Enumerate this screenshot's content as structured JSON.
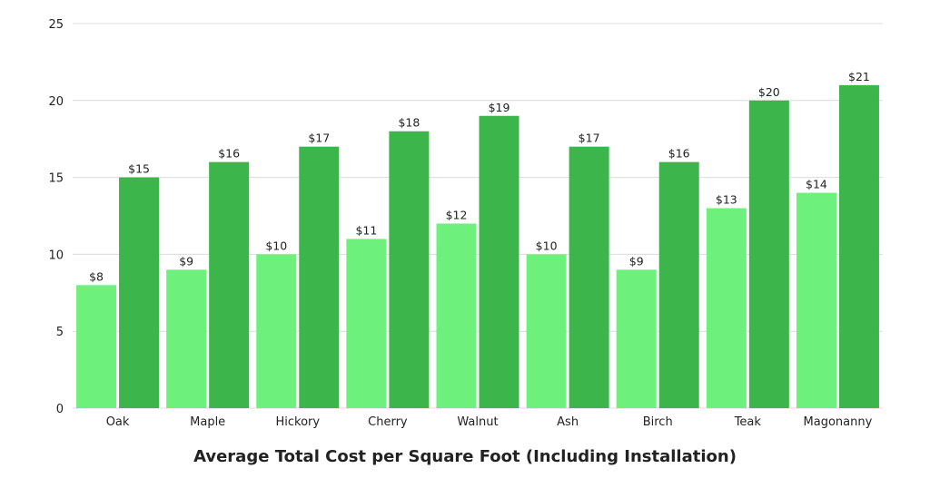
{
  "chart_data": {
    "type": "bar",
    "title": "",
    "xlabel": "Average Total Cost per Square Foot (Including Installation)",
    "ylabel": "",
    "categories": [
      "Oak",
      "Maple",
      "Hickory",
      "Cherry",
      "Walnut",
      "Ash",
      "Birch",
      "Teak",
      "Magonanny"
    ],
    "series": [
      {
        "values": [
          8,
          9,
          10,
          11,
          12,
          10,
          9,
          13,
          14
        ],
        "labels": [
          "$8",
          "$9",
          "$10",
          "$11",
          "$12",
          "$10",
          "$9",
          "$13",
          "$14"
        ],
        "color": "#6df07c"
      },
      {
        "values": [
          15,
          16,
          17,
          18,
          19,
          17,
          16,
          20,
          21
        ],
        "labels": [
          "$15",
          "$16",
          "$17",
          "$18",
          "$19",
          "$17",
          "$16",
          "$20",
          "$21"
        ],
        "color": "#3cb54a"
      }
    ],
    "ylim": [
      0,
      25
    ],
    "yticks": [
      0,
      5,
      10,
      15,
      20,
      25
    ],
    "grid": true,
    "legend": "none"
  }
}
